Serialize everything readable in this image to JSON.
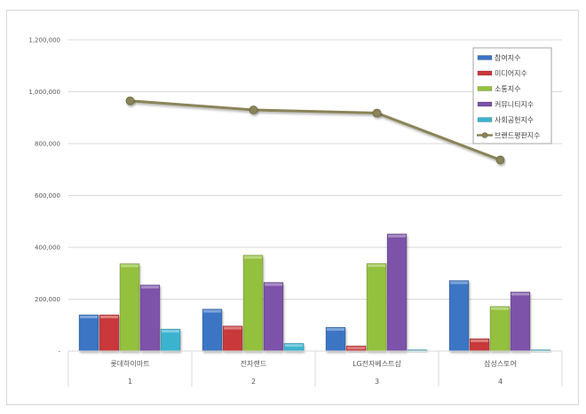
{
  "chart_data": {
    "type": "bar",
    "title": "",
    "xlabel": "",
    "ylabel": "",
    "ylim": [
      0,
      1200000
    ],
    "yticks": [
      0,
      200000,
      400000,
      600000,
      800000,
      1000000,
      1200000
    ],
    "ytick_labels": [
      "-",
      "200,000",
      "400,000",
      "600,000",
      "800,000",
      "1,000,000",
      "1,200,000"
    ],
    "grid": true,
    "legend_position": "right-top",
    "categories": [
      "롯데하이마트",
      "전자랜드",
      "LG전자베스트샵",
      "삼성스토어"
    ],
    "category_ranks": [
      "1",
      "2",
      "3",
      "4"
    ],
    "series": [
      {
        "name": "참여지수",
        "type": "bar",
        "color": "#3a74c4",
        "values": [
          140000,
          162000,
          92000,
          272000
        ]
      },
      {
        "name": "미디어지수",
        "type": "bar",
        "color": "#c9393a",
        "values": [
          140000,
          97000,
          20000,
          48000
        ]
      },
      {
        "name": "소통지수",
        "type": "bar",
        "color": "#93c03d",
        "values": [
          337000,
          370000,
          338000,
          172000
        ]
      },
      {
        "name": "커뮤니티지수",
        "type": "bar",
        "color": "#7b52a8",
        "values": [
          255000,
          265000,
          452000,
          228000
        ]
      },
      {
        "name": "사회공헌지수",
        "type": "bar",
        "color": "#3bb3cf",
        "values": [
          85000,
          30000,
          5000,
          5000
        ]
      },
      {
        "name": "브랜드평판지수",
        "type": "line",
        "color": "#8a8458",
        "values": [
          965000,
          930000,
          918000,
          737000
        ]
      }
    ]
  }
}
